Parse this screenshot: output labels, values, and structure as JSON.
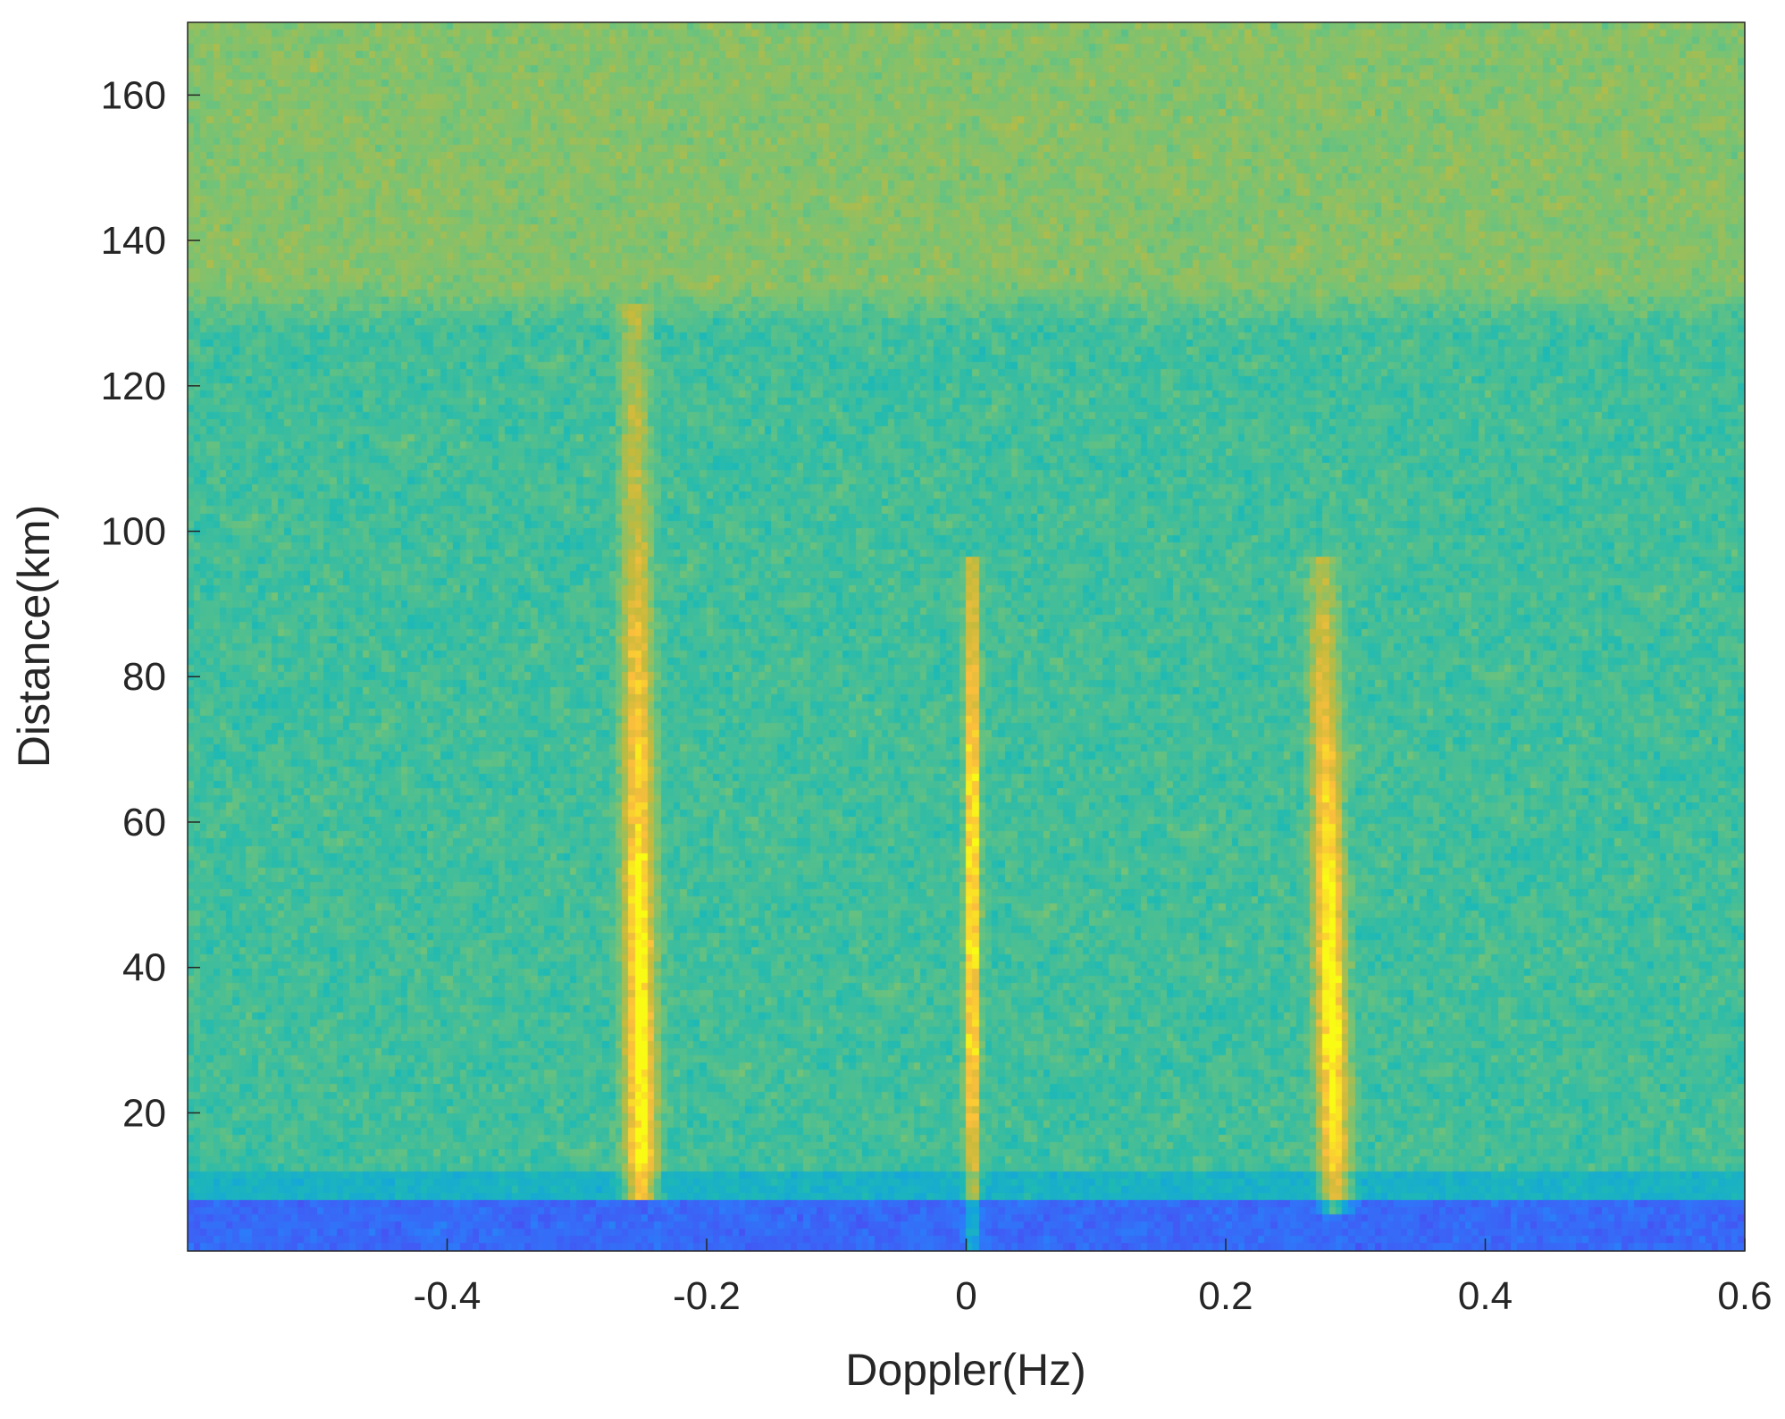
{
  "chart_data": {
    "type": "heatmap",
    "title": "",
    "xlabel": "Doppler(Hz)",
    "ylabel": "Distance(km)",
    "xlim": [
      -0.6,
      0.6
    ],
    "ylim": [
      1,
      170
    ],
    "x_ticks": [
      -0.4,
      -0.2,
      0,
      0.2,
      0.4,
      0.6
    ],
    "x_tick_labels": [
      "-0.4",
      "-0.2",
      "0",
      "0.2",
      "0.4",
      "0.6"
    ],
    "y_ticks": [
      20,
      40,
      60,
      80,
      100,
      120,
      140,
      160
    ],
    "y_tick_labels": [
      "20",
      "40",
      "60",
      "80",
      "100",
      "120",
      "140",
      "160"
    ],
    "colormap": "parula",
    "grid": false,
    "legend": "none",
    "features": [
      {
        "kind": "ridge",
        "doppler_top": -0.255,
        "doppler_bottom": -0.25,
        "distance_range": [
          10,
          125
        ],
        "peak_distance": 30
      },
      {
        "kind": "ridge",
        "doppler_top": 0.005,
        "doppler_bottom": 0.005,
        "distance_range": [
          1,
          90
        ],
        "peak_distance": 50
      },
      {
        "kind": "ridge",
        "doppler_top": 0.275,
        "doppler_bottom": 0.285,
        "distance_range": [
          8,
          90
        ],
        "peak_distance": 35
      },
      {
        "kind": "band",
        "description": "low intensity",
        "distance_range": [
          1,
          8
        ]
      },
      {
        "kind": "band",
        "description": "elevated intensity",
        "distance_range": [
          130,
          170
        ]
      }
    ]
  }
}
